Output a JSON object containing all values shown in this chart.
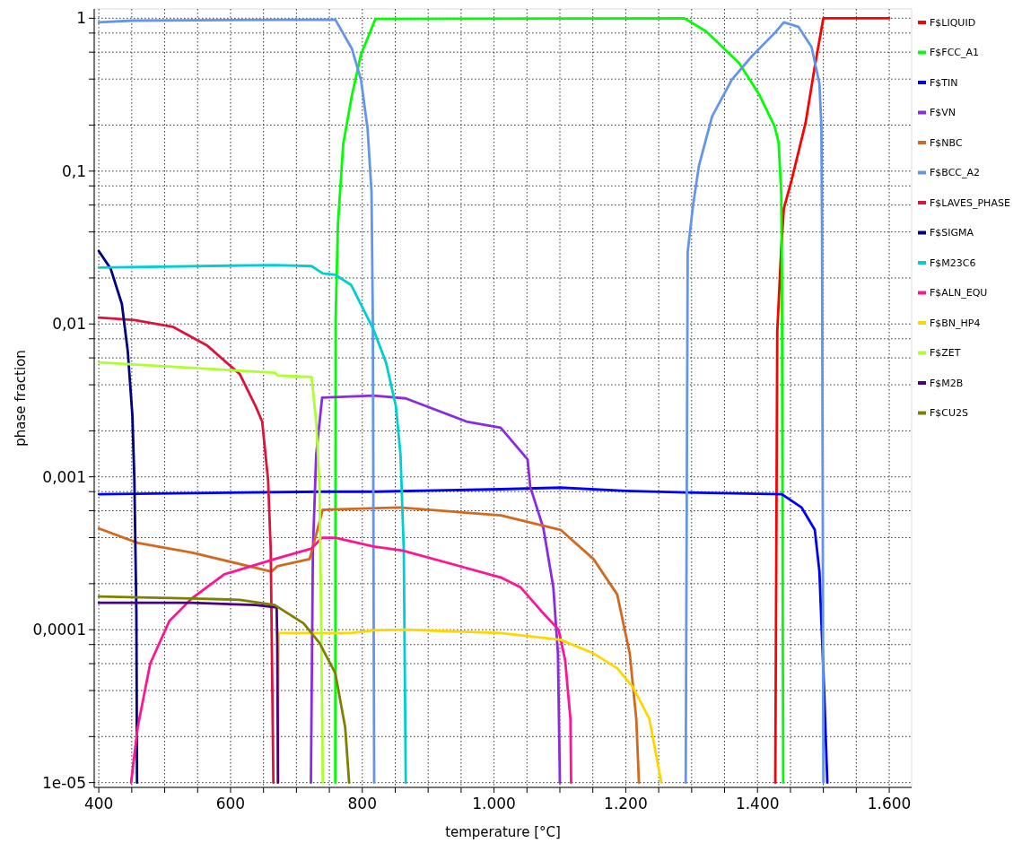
{
  "chart_data": {
    "type": "line",
    "xlabel": "temperature [°C]",
    "ylabel": "phase fraction",
    "log": "y",
    "grid": true,
    "legend": "right",
    "xlim": [
      393,
      1634
    ],
    "ylim": [
      9.3e-06,
      1.15
    ],
    "xticks": [
      {
        "value": 400,
        "label": "400"
      },
      {
        "value": 450,
        "label": null
      },
      {
        "value": 500,
        "label": null
      },
      {
        "value": 550,
        "label": null
      },
      {
        "value": 600,
        "label": "600"
      },
      {
        "value": 650,
        "label": null
      },
      {
        "value": 700,
        "label": null
      },
      {
        "value": 750,
        "label": null
      },
      {
        "value": 800,
        "label": "800"
      },
      {
        "value": 850,
        "label": null
      },
      {
        "value": 900,
        "label": null
      },
      {
        "value": 950,
        "label": null
      },
      {
        "value": 1000,
        "label": "1.000"
      },
      {
        "value": 1050,
        "label": null
      },
      {
        "value": 1100,
        "label": null
      },
      {
        "value": 1150,
        "label": null
      },
      {
        "value": 1200,
        "label": "1.200"
      },
      {
        "value": 1250,
        "label": null
      },
      {
        "value": 1300,
        "label": null
      },
      {
        "value": 1350,
        "label": null
      },
      {
        "value": 1400,
        "label": "1.400"
      },
      {
        "value": 1450,
        "label": null
      },
      {
        "value": 1500,
        "label": null
      },
      {
        "value": 1550,
        "label": null
      },
      {
        "value": 1600,
        "label": "1.600"
      }
    ],
    "yticks": [
      {
        "value": 1e-05,
        "label": "1e-05"
      },
      {
        "value": 2e-05,
        "label": null
      },
      {
        "value": 4e-05,
        "label": null
      },
      {
        "value": 6e-05,
        "label": null
      },
      {
        "value": 8e-05,
        "label": null
      },
      {
        "value": 0.0001,
        "label": "0,0001"
      },
      {
        "value": 0.0002,
        "label": null
      },
      {
        "value": 0.0004,
        "label": null
      },
      {
        "value": 0.0006,
        "label": null
      },
      {
        "value": 0.0008,
        "label": null
      },
      {
        "value": 0.001,
        "label": "0,001"
      },
      {
        "value": 0.002,
        "label": null
      },
      {
        "value": 0.004,
        "label": null
      },
      {
        "value": 0.006,
        "label": null
      },
      {
        "value": 0.008,
        "label": null
      },
      {
        "value": 0.01,
        "label": "0,01"
      },
      {
        "value": 0.02,
        "label": null
      },
      {
        "value": 0.04,
        "label": null
      },
      {
        "value": 0.06,
        "label": null
      },
      {
        "value": 0.08,
        "label": null
      },
      {
        "value": 0.1,
        "label": "0,1"
      },
      {
        "value": 0.2,
        "label": null
      },
      {
        "value": 0.4,
        "label": null
      },
      {
        "value": 0.6,
        "label": null
      },
      {
        "value": 0.8,
        "label": null
      },
      {
        "value": 1,
        "label": "1"
      }
    ],
    "series": [
      {
        "name": "F$LIQUID",
        "color": "#ff0000",
        "x": [
          1427,
          1430,
          1436,
          1440,
          1452,
          1473,
          1487,
          1500,
          1600
        ],
        "values": [
          1e-05,
          0.0089,
          0.031,
          0.057,
          0.088,
          0.207,
          0.485,
          1.0,
          1.0
        ]
      },
      {
        "name": "F$FCC_A1",
        "color": "#00ff00",
        "x": [
          759,
          759.5,
          763,
          771,
          784,
          798,
          820,
          1289,
          1322,
          1372,
          1402,
          1426,
          1432,
          1436,
          1437,
          1439
        ],
        "values": [
          1e-05,
          0.0107,
          0.045,
          0.15,
          0.31,
          0.58,
          0.99,
          1.0,
          0.82,
          0.51,
          0.32,
          0.196,
          0.154,
          0.072,
          0.024,
          1e-05
        ]
      },
      {
        "name": "F$TIN",
        "color": "#0000ff",
        "x": [
          400,
          740,
          820,
          1010,
          1101,
          1200,
          1290,
          1437,
          1467,
          1487,
          1494,
          1497,
          1501,
          1506
        ],
        "values": [
          0.00077,
          0.0008,
          0.0008,
          0.00083,
          0.00085,
          0.00081,
          0.00079,
          0.00077,
          0.00063,
          0.00045,
          0.00024,
          0.000112,
          4.2e-05,
          1e-05
        ]
      },
      {
        "name": "F$VN",
        "color": "#8a2be2",
        "x": [
          722,
          725,
          730,
          739,
          817,
          866,
          958,
          1010,
          1051,
          1055,
          1075,
          1090,
          1097,
          1100
        ],
        "values": [
          1e-05,
          0.00033,
          0.0014,
          0.0033,
          0.0034,
          0.00326,
          0.0023,
          0.0021,
          0.0013,
          0.00086,
          0.00046,
          0.00019,
          7e-05,
          1e-05
        ]
      },
      {
        "name": "F$NBC",
        "color": "#d2691e",
        "x": [
          400,
          459,
          541,
          662,
          671,
          720,
          740,
          856,
          1010,
          1101,
          1151,
          1187,
          1206,
          1216,
          1220
        ],
        "values": [
          0.00046,
          0.00037,
          0.00032,
          0.00024,
          0.00026,
          0.00029,
          0.00061,
          0.00063,
          0.00056,
          0.00045,
          0.00029,
          0.00017,
          7e-05,
          2.6e-05,
          1e-05
        ]
      },
      {
        "name": "F$BCC_A2",
        "color": "#6495ed",
        "x": [
          400,
          450,
          759,
          784,
          798,
          808,
          814,
          816,
          818,
          null,
          1291,
          1294,
          1302,
          1311,
          1331,
          1361,
          1391,
          1426,
          1440,
          1462,
          1482,
          1494,
          1497,
          1498,
          1500
        ],
        "values": [
          0.94,
          0.965,
          0.98,
          0.635,
          0.396,
          0.19,
          0.073,
          0.0107,
          1e-05,
          null,
          1e-05,
          0.0296,
          0.059,
          0.108,
          0.228,
          0.396,
          0.562,
          0.8,
          0.94,
          0.88,
          0.65,
          0.375,
          0.196,
          0.04,
          1e-05
        ]
      },
      {
        "name": "F$LAVES_PHASE",
        "color": "#dc143c",
        "x": [
          400,
          454,
          512,
          565,
          614,
          638,
          648,
          657,
          661,
          665
        ],
        "values": [
          0.011,
          0.0106,
          0.0096,
          0.0072,
          0.0047,
          0.0029,
          0.0023,
          0.00095,
          0.00033,
          1e-05
        ]
      },
      {
        "name": "F$SIGMA",
        "color": "#000080",
        "x": [
          400,
          418,
          435,
          444,
          451,
          454,
          457,
          458
        ],
        "values": [
          0.03,
          0.023,
          0.0135,
          0.0066,
          0.0025,
          0.00095,
          0.00013,
          1e-05
        ]
      },
      {
        "name": "F$M23C6",
        "color": "#00ced1",
        "x": [
          400,
          667,
          723,
          740,
          759,
          783,
          817,
          836,
          851,
          858,
          863,
          866
        ],
        "values": [
          0.0234,
          0.0243,
          0.0239,
          0.0214,
          0.021,
          0.018,
          0.0092,
          0.0056,
          0.0029,
          0.0014,
          0.00033,
          1e-05
        ]
      },
      {
        "name": "F$ALN_EQU",
        "color": "#ff1493",
        "x": [
          449,
          459,
          478,
          507,
          541,
          590,
          667,
          723,
          739,
          759,
          817,
          861,
          1010,
          1040,
          1070,
          1098,
          1108,
          1116,
          1117
        ],
        "values": [
          1e-05,
          2.3e-05,
          6e-05,
          0.000114,
          0.00016,
          0.00023,
          0.00029,
          0.00034,
          0.0004,
          0.0004,
          0.00035,
          0.00033,
          0.00022,
          0.00019,
          0.000135,
          0.0001,
          6.3e-05,
          2.6e-05,
          1e-05
        ]
      },
      {
        "name": "F$BN_HP4",
        "color": "#ffd700",
        "x": [
          672,
          673,
          783,
          817,
          866,
          1010,
          1101,
          1151,
          1187,
          1211,
          1236,
          1254
        ],
        "values": [
          1e-05,
          9.5e-05,
          9.5e-05,
          9.9e-05,
          0.0001,
          9.5e-05,
          8.6e-05,
          7e-05,
          5.6e-05,
          4.2e-05,
          2.6e-05,
          1e-05
        ]
      },
      {
        "name": "F$ZET",
        "color": "#adff2f",
        "x": [
          400,
          667,
          672,
          723,
          730,
          735,
          737.5,
          740
        ],
        "values": [
          0.0056,
          0.0048,
          0.0046,
          0.0045,
          0.0023,
          0.00088,
          0.00013,
          1e-05
        ]
      },
      {
        "name": "F$M2B",
        "color": "#4b0082",
        "x": [
          400,
          541,
          638,
          670,
          671,
          672
        ],
        "values": [
          0.00015,
          0.00015,
          0.000145,
          0.00014,
          7.8e-05,
          1e-05
        ]
      },
      {
        "name": "F$CU2S",
        "color": "#808000",
        "x": [
          400,
          541,
          614,
          667,
          711,
          735,
          759,
          774,
          780
        ],
        "values": [
          0.000165,
          0.00016,
          0.000157,
          0.000145,
          0.00011,
          8.2e-05,
          5.2e-05,
          2.3e-05,
          1e-05
        ]
      }
    ]
  }
}
